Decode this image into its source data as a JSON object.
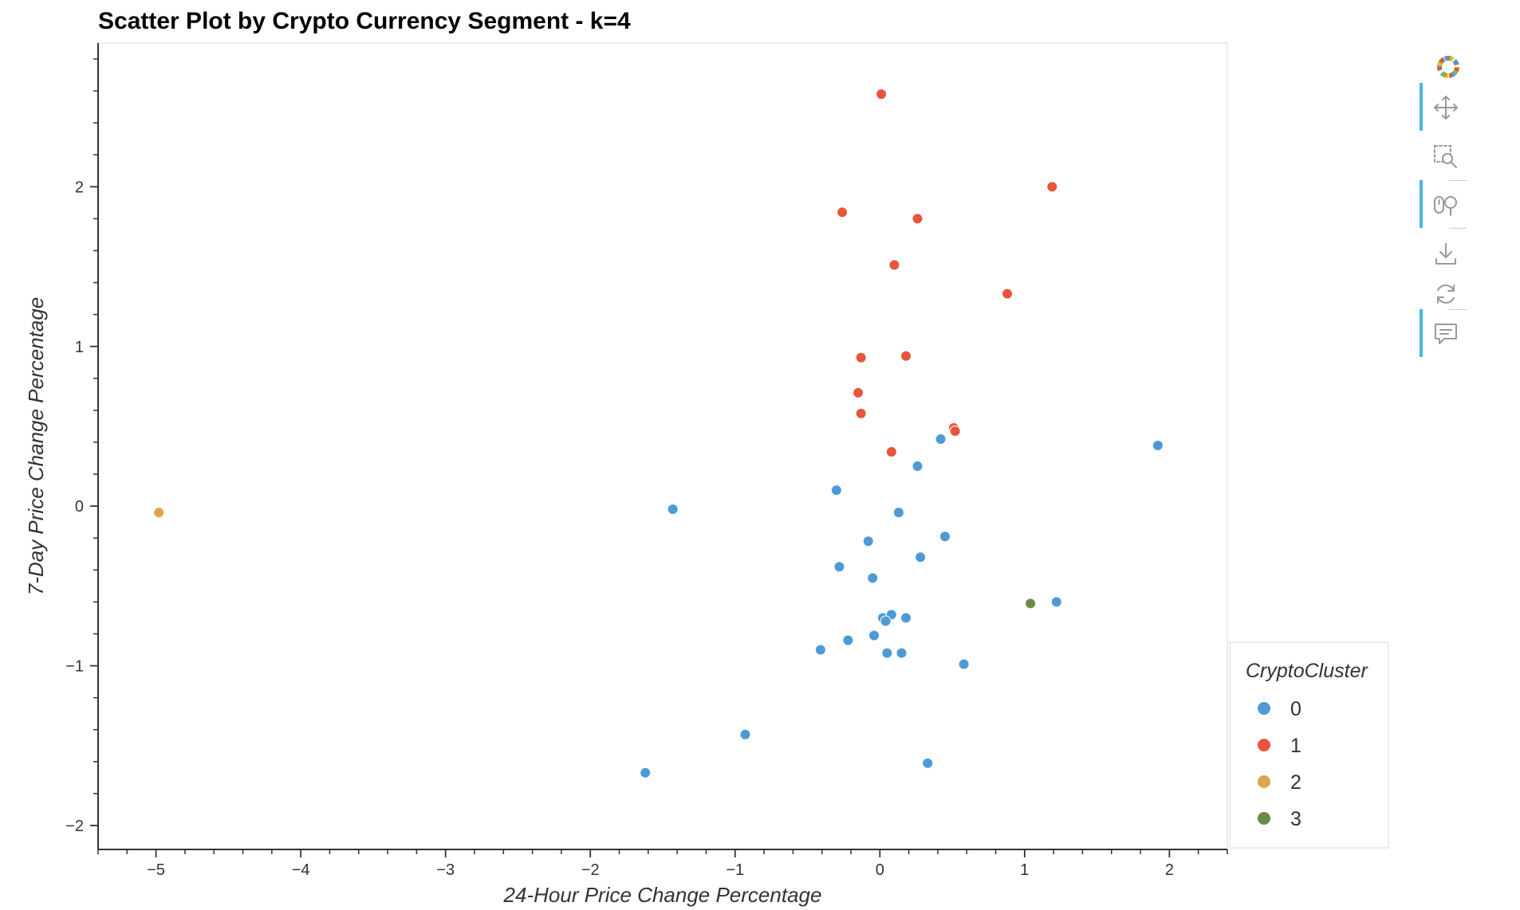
{
  "chart_data": {
    "type": "scatter",
    "title": "Scatter Plot by Crypto Currency Segment - k=4",
    "xlabel": "24-Hour Price Change Percentage",
    "ylabel": "7-Day Price Change Percentage",
    "xlim": [
      -5.4,
      2.4
    ],
    "ylim": [
      -2.15,
      2.9
    ],
    "xticks": [
      -5,
      -4,
      -3,
      -2,
      -1,
      0,
      1,
      2
    ],
    "xtick_labels": [
      "−5",
      "−4",
      "−3",
      "−2",
      "−1",
      "0",
      "1",
      "2"
    ],
    "yticks": [
      -2,
      -1,
      0,
      1,
      2
    ],
    "ytick_labels": [
      "−2",
      "−1",
      "0",
      "1",
      "2"
    ],
    "grid": false,
    "legend": {
      "title": "CryptoCluster",
      "placement": "right"
    },
    "series": [
      {
        "name": "0",
        "color": "#4c9bd6",
        "points": [
          [
            -1.43,
            -0.02
          ],
          [
            -0.3,
            0.1
          ],
          [
            0.13,
            -0.04
          ],
          [
            0.26,
            0.25
          ],
          [
            0.42,
            0.42
          ],
          [
            1.92,
            0.38
          ],
          [
            -0.08,
            -0.22
          ],
          [
            0.45,
            -0.19
          ],
          [
            0.28,
            -0.32
          ],
          [
            -0.28,
            -0.38
          ],
          [
            -0.05,
            -0.45
          ],
          [
            1.22,
            -0.6
          ],
          [
            0.02,
            -0.7
          ],
          [
            0.08,
            -0.68
          ],
          [
            0.04,
            -0.72
          ],
          [
            0.18,
            -0.7
          ],
          [
            -0.04,
            -0.81
          ],
          [
            -0.22,
            -0.84
          ],
          [
            -0.41,
            -0.9
          ],
          [
            0.05,
            -0.92
          ],
          [
            0.15,
            -0.92
          ],
          [
            0.58,
            -0.99
          ],
          [
            -0.93,
            -1.43
          ],
          [
            0.33,
            -1.61
          ],
          [
            -1.62,
            -1.67
          ]
        ]
      },
      {
        "name": "1",
        "color": "#e8553a",
        "points": [
          [
            0.01,
            2.58
          ],
          [
            1.19,
            2.0
          ],
          [
            -0.26,
            1.84
          ],
          [
            0.26,
            1.8
          ],
          [
            0.1,
            1.51
          ],
          [
            0.88,
            1.33
          ],
          [
            -0.13,
            0.93
          ],
          [
            0.18,
            0.94
          ],
          [
            -0.15,
            0.71
          ],
          [
            -0.13,
            0.58
          ],
          [
            0.51,
            0.49
          ],
          [
            0.52,
            0.47
          ],
          [
            0.08,
            0.34
          ]
        ]
      },
      {
        "name": "2",
        "color": "#d9a84b",
        "points": [
          [
            -4.98,
            -0.04
          ]
        ]
      },
      {
        "name": "3",
        "color": "#6b8a48",
        "points": [
          [
            1.04,
            -0.61
          ]
        ]
      }
    ]
  },
  "toolbar": {
    "tools": [
      {
        "name": "logo-icon",
        "active": false
      },
      {
        "name": "pan-icon",
        "active": true
      },
      {
        "name": "box-zoom-icon",
        "active": false
      },
      {
        "name": "wheel-zoom-icon",
        "active": true
      },
      {
        "name": "save-icon",
        "active": false
      },
      {
        "name": "reset-icon",
        "active": false
      },
      {
        "name": "hover-icon",
        "active": true
      }
    ]
  }
}
